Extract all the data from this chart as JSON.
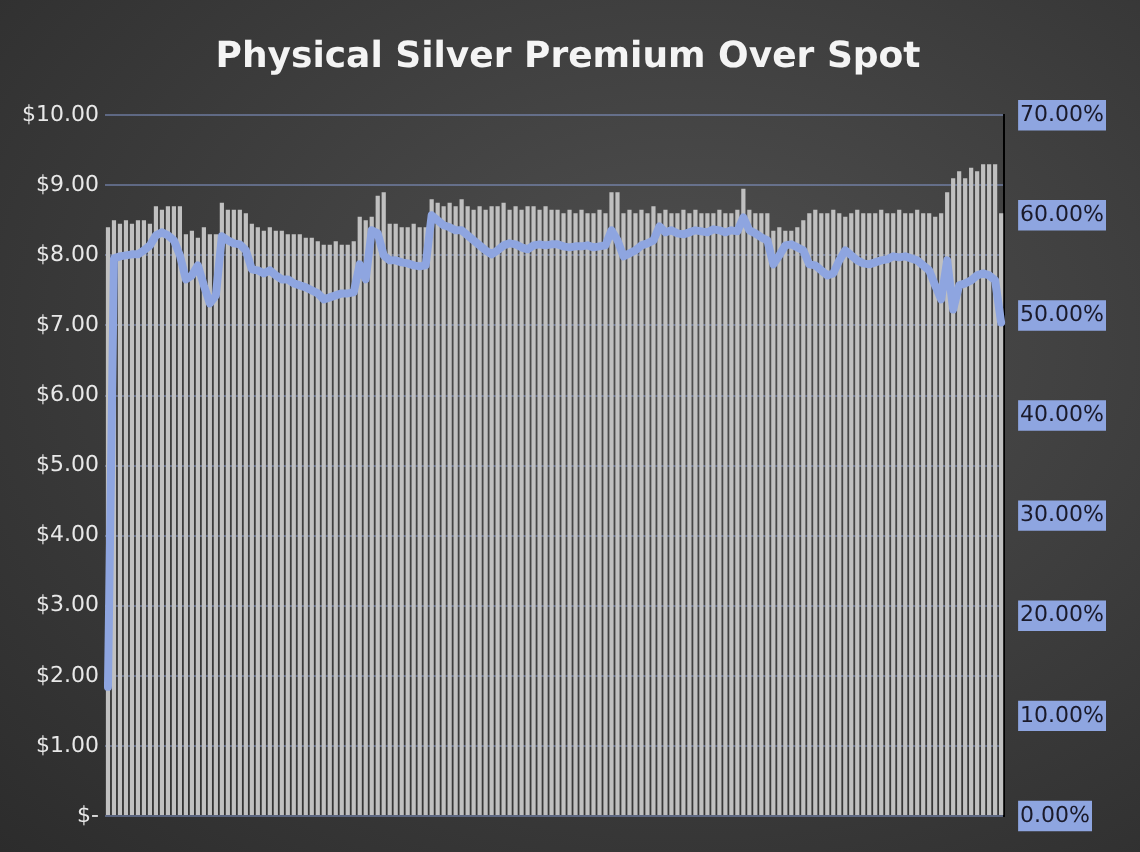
{
  "chart_data": {
    "type": "bar",
    "title": "Physical Silver Premium Over Spot",
    "categories": [
      null,
      null,
      null,
      null,
      null,
      null,
      null,
      null,
      null,
      null,
      null,
      null,
      null,
      null,
      null,
      null,
      null,
      null,
      null,
      null,
      null,
      null,
      null,
      null,
      null,
      null,
      null,
      null,
      null,
      null,
      null,
      null,
      null,
      null,
      null,
      null,
      null,
      null,
      null,
      null,
      null,
      null,
      null,
      null,
      null,
      null,
      null,
      null,
      null,
      null,
      null,
      null,
      null,
      null,
      null,
      null,
      null,
      null,
      null,
      null,
      null,
      null,
      null,
      null,
      null,
      null,
      null,
      null,
      null,
      null,
      null,
      null,
      null,
      null,
      null,
      null,
      null,
      null,
      null,
      null,
      null,
      null,
      null,
      null,
      null,
      null,
      null,
      null,
      null,
      null,
      null,
      null,
      null,
      null,
      null,
      null,
      null,
      null,
      null,
      null,
      null,
      null,
      null,
      null,
      null,
      null,
      null,
      null,
      null,
      null,
      null,
      null,
      null,
      null,
      null,
      null,
      null,
      null,
      null,
      null,
      null,
      null,
      null,
      null,
      null,
      null,
      null,
      null,
      null,
      null,
      null,
      null,
      null,
      null,
      null,
      null,
      null,
      null,
      null,
      null,
      null,
      null,
      null,
      null,
      null,
      null,
      null,
      null,
      null,
      null
    ],
    "series": [
      {
        "color": "#c0c0c0",
        "values": [
          8.4,
          8.5,
          8.45,
          8.5,
          8.45,
          8.5,
          8.5,
          8.45,
          8.7,
          8.65,
          8.7,
          8.7,
          8.7,
          8.3,
          8.35,
          8.25,
          8.4,
          8.3,
          8.3,
          8.75,
          8.65,
          8.65,
          8.65,
          8.6,
          8.45,
          8.4,
          8.35,
          8.4,
          8.35,
          8.35,
          8.3,
          8.3,
          8.3,
          8.25,
          8.25,
          8.2,
          8.15,
          8.15,
          8.2,
          8.15,
          8.15,
          8.2,
          8.55,
          8.5,
          8.55,
          8.85,
          8.9,
          8.45,
          8.45,
          8.4,
          8.4,
          8.45,
          8.4,
          8.4,
          8.8,
          8.75,
          8.7,
          8.75,
          8.7,
          8.8,
          8.7,
          8.65,
          8.7,
          8.65,
          8.7,
          8.7,
          8.75,
          8.65,
          8.7,
          8.65,
          8.7,
          8.7,
          8.65,
          8.7,
          8.65,
          8.65,
          8.6,
          8.65,
          8.6,
          8.65,
          8.6,
          8.6,
          8.65,
          8.6,
          8.9,
          8.9,
          8.6,
          8.65,
          8.6,
          8.65,
          8.6,
          8.7,
          8.6,
          8.65,
          8.6,
          8.6,
          8.65,
          8.6,
          8.65,
          8.6,
          8.6,
          8.6,
          8.65,
          8.6,
          8.6,
          8.65,
          8.95,
          8.65,
          8.6,
          8.6,
          8.6,
          8.35,
          8.4,
          8.35,
          8.35,
          8.4,
          8.5,
          8.6,
          8.65,
          8.6,
          8.6,
          8.65,
          8.6,
          8.55,
          8.6,
          8.65,
          8.6,
          8.6,
          8.6,
          8.65,
          8.6,
          8.6,
          8.65,
          8.6,
          8.6,
          8.65,
          8.6,
          8.6,
          8.55,
          8.6,
          8.9,
          9.1,
          9.2,
          9.1,
          9.25,
          9.2,
          9.3,
          9.3,
          9.3,
          8.6
        ]
      },
      {
        "type": "line",
        "axis": "y2",
        "color": "#8ea5e0",
        "values": [
          12.9,
          55.7,
          55.9,
          56,
          56.1,
          56.1,
          56.5,
          57,
          58,
          58.3,
          58,
          57.5,
          56,
          53.6,
          54,
          55,
          53,
          51.2,
          52,
          57.9,
          57.5,
          57.2,
          57.1,
          56.5,
          54.6,
          54.5,
          54.2,
          54.5,
          54,
          53.6,
          53.6,
          53.2,
          53,
          52.8,
          52.5,
          52.2,
          51.6,
          51.8,
          52,
          52.2,
          52.2,
          52.3,
          55.1,
          53.6,
          58.5,
          58.2,
          56,
          55.5,
          55.5,
          55.3,
          55.2,
          55,
          54.9,
          55,
          60,
          59.5,
          59,
          58.8,
          58.5,
          58.5,
          58,
          57.5,
          57,
          56.5,
          56.1,
          56.5,
          57,
          57.2,
          57.1,
          56.8,
          56.6,
          57,
          57.1,
          57,
          57.1,
          57.1,
          56.9,
          56.8,
          56.9,
          56.9,
          57,
          56.8,
          56.9,
          57,
          58.5,
          57.5,
          55.9,
          56.2,
          56.5,
          57,
          57.2,
          57.5,
          58.9,
          58.3,
          58.5,
          58.2,
          58.1,
          58.3,
          58.5,
          58.4,
          58.3,
          58.6,
          58.5,
          58.3,
          58.5,
          58.4,
          59.8,
          58.5,
          58.2,
          57.8,
          57.5,
          55.1,
          56,
          57,
          57.1,
          56.8,
          56.5,
          55.1,
          55,
          54.5,
          54,
          54.2,
          55.5,
          56.5,
          56,
          55.5,
          55.2,
          55.1,
          55.3,
          55.5,
          55.6,
          55.9,
          55.8,
          55.9,
          55.7,
          55.5,
          55,
          54.5,
          53,
          51.6,
          55.5,
          50.6,
          53,
          53.2,
          53.5,
          54,
          54.2,
          54,
          53.5,
          49.3
        ]
      }
    ],
    "ylim": [
      0,
      10
    ],
    "yticks": [
      {
        "value": 0,
        "label": "$-"
      },
      {
        "value": 1,
        "label": "$1.00"
      },
      {
        "value": 2,
        "label": "$2.00"
      },
      {
        "value": 3,
        "label": "$3.00"
      },
      {
        "value": 4,
        "label": "$4.00"
      },
      {
        "value": 5,
        "label": "$5.00"
      },
      {
        "value": 6,
        "label": "$6.00"
      },
      {
        "value": 7,
        "label": "$7.00"
      },
      {
        "value": 8,
        "label": "$8.00"
      },
      {
        "value": 9,
        "label": "$9.00"
      },
      {
        "value": 10,
        "label": "$10.00"
      }
    ],
    "y2lim": [
      0,
      70
    ],
    "y2ticks": [
      {
        "value": 0,
        "label": "0.00%"
      },
      {
        "value": 10,
        "label": "10.00%"
      },
      {
        "value": 20,
        "label": "20.00%"
      },
      {
        "value": 30,
        "label": "30.00%"
      },
      {
        "value": 40,
        "label": "40.00%"
      },
      {
        "value": 50,
        "label": "50.00%"
      },
      {
        "value": 60,
        "label": "60.00%"
      },
      {
        "value": 70,
        "label": "70.00%"
      }
    ],
    "grid": "y",
    "legend": false,
    "marker": "none"
  }
}
